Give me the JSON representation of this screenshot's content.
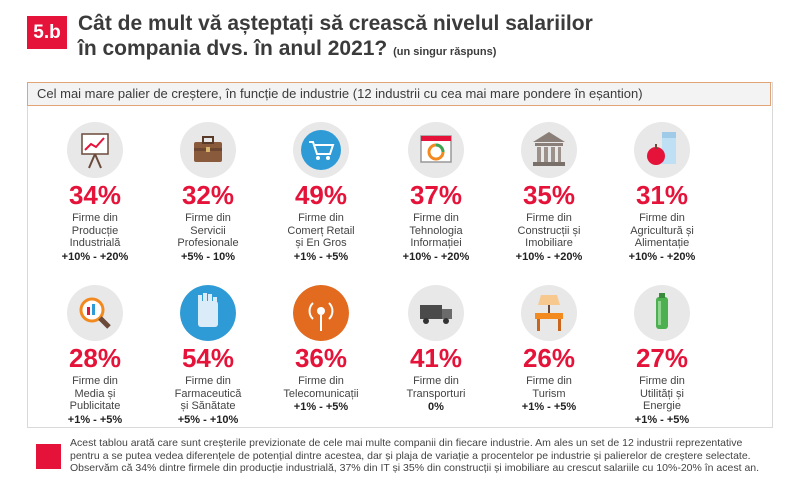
{
  "badge": "5.b",
  "title": {
    "line1": "Cât de mult vă așteptați să crească nivelul salariilor",
    "line2": "în compania dvs. în anul 2021?",
    "note": "(un singur răspuns)"
  },
  "header": "Cel mai mare palier de creștere, în funcție de industrie (12 industrii cu cea mai mare pondere în eșantion)",
  "colors": {
    "accent": "#e5133a",
    "icon_bg": "#e8e8e8"
  },
  "industries": [
    {
      "pct": "34%",
      "label": "Firme din\nProducție\nIndustrială",
      "range": "+10% - +20%",
      "icon": "presentation-chart-icon"
    },
    {
      "pct": "32%",
      "label": "Firme din\nServicii\nProfesionale",
      "range": "+5% - 10%",
      "icon": "briefcase-icon"
    },
    {
      "pct": "49%",
      "label": "Firme din\nComerț Retail\nși En Gros",
      "range": "+1% - +5%",
      "icon": "shopping-cart-icon"
    },
    {
      "pct": "37%",
      "label": "Firme din\nTehnologia\nInformației",
      "range": "+10% - +20%",
      "icon": "browser-window-icon"
    },
    {
      "pct": "35%",
      "label": "Firme din\nConstrucții și\nImobiliare",
      "range": "+10% - +20%",
      "icon": "columns-building-icon"
    },
    {
      "pct": "31%",
      "label": "Firme din\nAgricultură și\nAlimentație",
      "range": "+10% - +20%",
      "icon": "apple-milk-icon"
    },
    {
      "pct": "28%",
      "label": "Firme din\nMedia și\nPublicitate",
      "range": "+1% - +5%",
      "icon": "magnifier-icon"
    },
    {
      "pct": "54%",
      "label": "Firme din\nFarmaceutică\nși Sănătate",
      "range": "+5% - +10%",
      "icon": "glove-icon"
    },
    {
      "pct": "36%",
      "label": "Firme din\nTelecomunicații",
      "range": "+1% - +5%",
      "icon": "antenna-signal-icon"
    },
    {
      "pct": "41%",
      "label": "Firme din\nTransporturi",
      "range": "0%",
      "icon": "truck-icon"
    },
    {
      "pct": "26%",
      "label": "Firme din\nTurism",
      "range": "+1% - +5%",
      "icon": "lamp-table-icon"
    },
    {
      "pct": "27%",
      "label": "Firme din\nUtilități și\nEnergie",
      "range": "+1% - +5%",
      "icon": "battery-icon"
    }
  ],
  "footnote": "Acest tablou arată care sunt creșterile previzionate de cele mai multe companii din fiecare industrie. Am ales un set de 12 industrii reprezentative pentru a se putea vedea diferențele de potențial dintre acestea, dar și plaja de variație a procentelor pe industrie și palierelor de creștere selectate. Observăm că 34% dintre firmele din producție industrială, 37% din IT și 35% din construcții și imobiliare au crescut salariile cu 10%-20% în acest an."
}
